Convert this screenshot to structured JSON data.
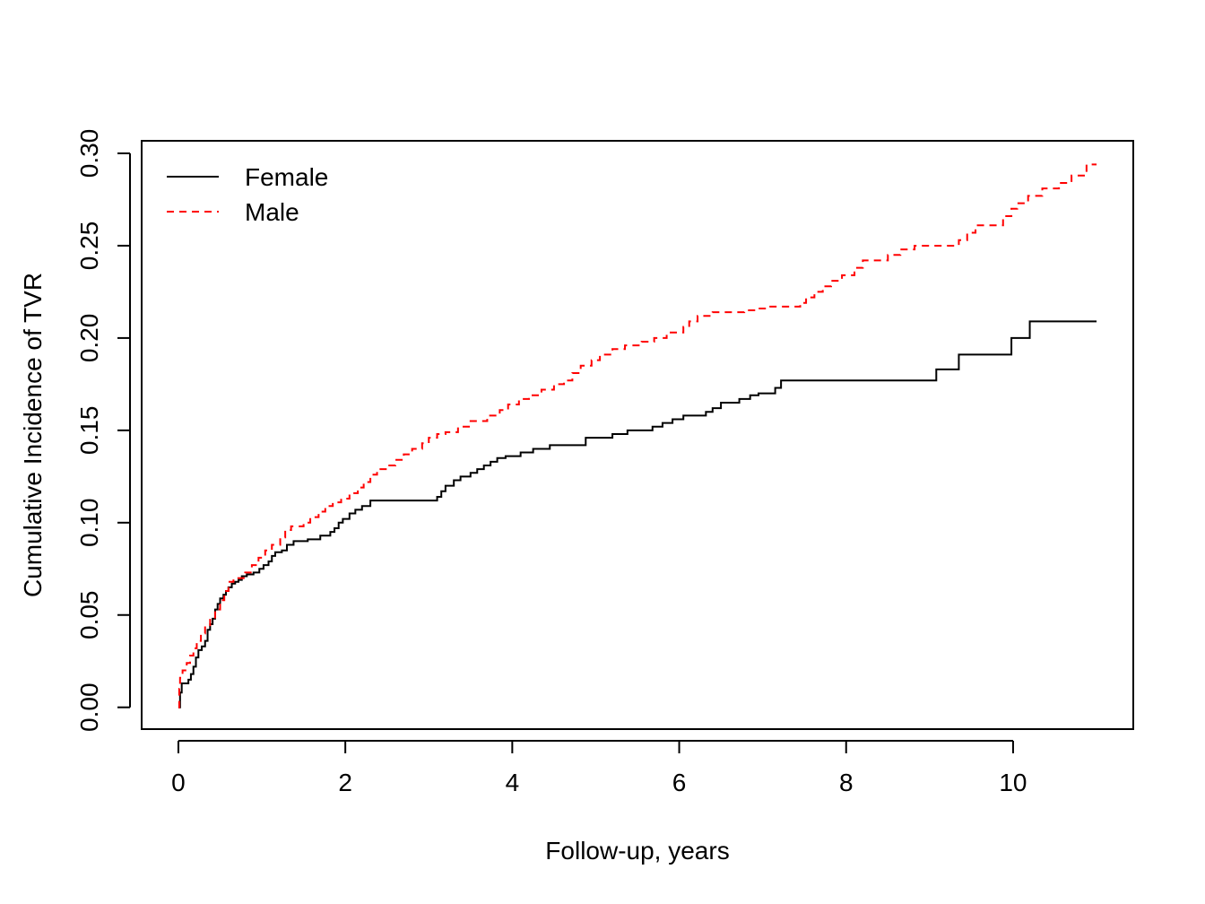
{
  "chart_data": {
    "type": "line",
    "title": "",
    "xlabel": "Follow-up, years",
    "ylabel": "Cumulative Incidence of TVR",
    "xlim": [
      -0.44,
      11.44
    ],
    "ylim": [
      -0.0118,
      0.3068
    ],
    "xticks": [
      0,
      2,
      4,
      6,
      8,
      10
    ],
    "xtick_labels": [
      "0",
      "2",
      "4",
      "6",
      "8",
      "10"
    ],
    "yticks": [
      0.0,
      0.05,
      0.1,
      0.15,
      0.2,
      0.25,
      0.3
    ],
    "ytick_labels": [
      "0.00",
      "0.05",
      "0.10",
      "0.15",
      "0.20",
      "0.25",
      "0.30"
    ],
    "grid": false,
    "legend_position": "top-left",
    "series": [
      {
        "name": "Female",
        "color": "#000000",
        "line_style": "solid",
        "step": true,
        "points": [
          [
            0,
            0
          ],
          [
            0.02,
            0.008
          ],
          [
            0.04,
            0.013
          ],
          [
            0.1,
            0.013
          ],
          [
            0.12,
            0.015
          ],
          [
            0.15,
            0.018
          ],
          [
            0.18,
            0.022
          ],
          [
            0.21,
            0.027
          ],
          [
            0.24,
            0.031
          ],
          [
            0.28,
            0.033
          ],
          [
            0.32,
            0.036
          ],
          [
            0.35,
            0.042
          ],
          [
            0.38,
            0.045
          ],
          [
            0.41,
            0.048
          ],
          [
            0.44,
            0.053
          ],
          [
            0.47,
            0.056
          ],
          [
            0.5,
            0.059
          ],
          [
            0.54,
            0.061
          ],
          [
            0.57,
            0.063
          ],
          [
            0.6,
            0.065
          ],
          [
            0.64,
            0.067
          ],
          [
            0.68,
            0.068
          ],
          [
            0.72,
            0.069
          ],
          [
            0.76,
            0.071
          ],
          [
            0.82,
            0.072
          ],
          [
            0.9,
            0.073
          ],
          [
            0.97,
            0.075
          ],
          [
            1.02,
            0.077
          ],
          [
            1.08,
            0.079
          ],
          [
            1.12,
            0.082
          ],
          [
            1.16,
            0.084
          ],
          [
            1.24,
            0.085
          ],
          [
            1.3,
            0.088
          ],
          [
            1.38,
            0.09
          ],
          [
            1.55,
            0.091
          ],
          [
            1.7,
            0.093
          ],
          [
            1.82,
            0.095
          ],
          [
            1.87,
            0.097
          ],
          [
            1.92,
            0.1
          ],
          [
            1.97,
            0.102
          ],
          [
            2.05,
            0.105
          ],
          [
            2.12,
            0.107
          ],
          [
            2.2,
            0.109
          ],
          [
            2.3,
            0.112
          ],
          [
            3.1,
            0.114
          ],
          [
            3.15,
            0.117
          ],
          [
            3.2,
            0.12
          ],
          [
            3.3,
            0.123
          ],
          [
            3.38,
            0.125
          ],
          [
            3.5,
            0.127
          ],
          [
            3.58,
            0.129
          ],
          [
            3.66,
            0.131
          ],
          [
            3.74,
            0.133
          ],
          [
            3.82,
            0.135
          ],
          [
            3.92,
            0.136
          ],
          [
            4.1,
            0.138
          ],
          [
            4.25,
            0.14
          ],
          [
            4.45,
            0.142
          ],
          [
            4.5,
            0.142
          ],
          [
            4.88,
            0.146
          ],
          [
            5.2,
            0.148
          ],
          [
            5.38,
            0.15
          ],
          [
            5.68,
            0.152
          ],
          [
            5.8,
            0.154
          ],
          [
            5.92,
            0.156
          ],
          [
            6.05,
            0.158
          ],
          [
            6.32,
            0.16
          ],
          [
            6.4,
            0.162
          ],
          [
            6.5,
            0.165
          ],
          [
            6.72,
            0.167
          ],
          [
            6.85,
            0.169
          ],
          [
            6.95,
            0.17
          ],
          [
            7.15,
            0.173
          ],
          [
            7.22,
            0.177
          ],
          [
            9.08,
            0.183
          ],
          [
            9.35,
            0.191
          ],
          [
            9.98,
            0.2
          ],
          [
            10.2,
            0.209
          ],
          [
            11.0,
            0.209
          ]
        ]
      },
      {
        "name": "Male",
        "color": "#ff0000",
        "line_style": "dashed",
        "step": true,
        "points": [
          [
            0,
            0
          ],
          [
            0.01,
            0.01
          ],
          [
            0.02,
            0.016
          ],
          [
            0.05,
            0.02
          ],
          [
            0.1,
            0.024
          ],
          [
            0.14,
            0.028
          ],
          [
            0.18,
            0.032
          ],
          [
            0.22,
            0.036
          ],
          [
            0.27,
            0.04
          ],
          [
            0.32,
            0.044
          ],
          [
            0.38,
            0.048
          ],
          [
            0.44,
            0.053
          ],
          [
            0.5,
            0.058
          ],
          [
            0.55,
            0.063
          ],
          [
            0.6,
            0.068
          ],
          [
            0.66,
            0.07
          ],
          [
            0.8,
            0.073
          ],
          [
            0.88,
            0.077
          ],
          [
            0.96,
            0.081
          ],
          [
            1.04,
            0.085
          ],
          [
            1.12,
            0.088
          ],
          [
            1.22,
            0.092
          ],
          [
            1.28,
            0.096
          ],
          [
            1.35,
            0.098
          ],
          [
            1.5,
            0.1
          ],
          [
            1.58,
            0.103
          ],
          [
            1.68,
            0.106
          ],
          [
            1.76,
            0.109
          ],
          [
            1.85,
            0.111
          ],
          [
            1.95,
            0.113
          ],
          [
            2.05,
            0.116
          ],
          [
            2.15,
            0.119
          ],
          [
            2.22,
            0.122
          ],
          [
            2.3,
            0.126
          ],
          [
            2.38,
            0.129
          ],
          [
            2.5,
            0.131
          ],
          [
            2.6,
            0.134
          ],
          [
            2.7,
            0.137
          ],
          [
            2.8,
            0.14
          ],
          [
            2.92,
            0.143
          ],
          [
            3.0,
            0.146
          ],
          [
            3.1,
            0.148
          ],
          [
            3.2,
            0.149
          ],
          [
            3.35,
            0.152
          ],
          [
            3.5,
            0.155
          ],
          [
            3.7,
            0.158
          ],
          [
            3.85,
            0.161
          ],
          [
            3.95,
            0.164
          ],
          [
            4.08,
            0.167
          ],
          [
            4.2,
            0.169
          ],
          [
            4.35,
            0.172
          ],
          [
            4.5,
            0.175
          ],
          [
            4.62,
            0.177
          ],
          [
            4.72,
            0.181
          ],
          [
            4.82,
            0.185
          ],
          [
            4.95,
            0.188
          ],
          [
            5.05,
            0.191
          ],
          [
            5.2,
            0.194
          ],
          [
            5.35,
            0.196
          ],
          [
            5.55,
            0.198
          ],
          [
            5.7,
            0.2
          ],
          [
            5.85,
            0.203
          ],
          [
            6.05,
            0.206
          ],
          [
            6.12,
            0.209
          ],
          [
            6.22,
            0.212
          ],
          [
            6.4,
            0.214
          ],
          [
            6.78,
            0.215
          ],
          [
            6.95,
            0.216
          ],
          [
            7.05,
            0.217
          ],
          [
            7.45,
            0.219
          ],
          [
            7.52,
            0.222
          ],
          [
            7.62,
            0.225
          ],
          [
            7.72,
            0.228
          ],
          [
            7.82,
            0.231
          ],
          [
            7.95,
            0.234
          ],
          [
            8.1,
            0.238
          ],
          [
            8.2,
            0.242
          ],
          [
            8.5,
            0.245
          ],
          [
            8.65,
            0.248
          ],
          [
            8.82,
            0.25
          ],
          [
            9.35,
            0.253
          ],
          [
            9.45,
            0.257
          ],
          [
            9.55,
            0.261
          ],
          [
            9.88,
            0.266
          ],
          [
            9.98,
            0.27
          ],
          [
            10.05,
            0.273
          ],
          [
            10.18,
            0.277
          ],
          [
            10.35,
            0.281
          ],
          [
            10.55,
            0.284
          ],
          [
            10.7,
            0.288
          ],
          [
            10.88,
            0.294
          ],
          [
            11.0,
            0.294
          ]
        ]
      }
    ]
  }
}
